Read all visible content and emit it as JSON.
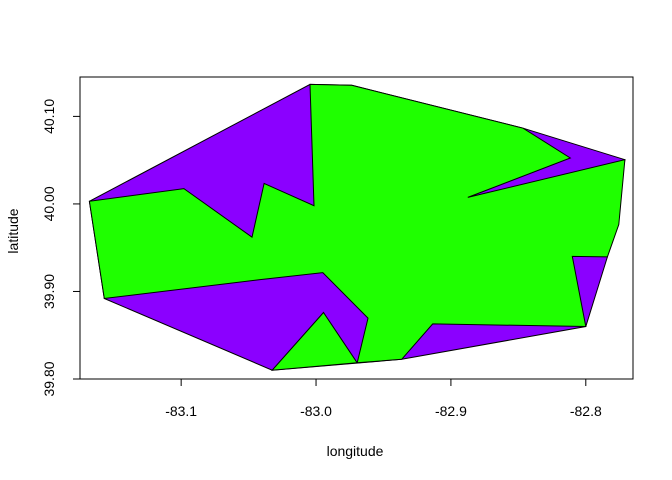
{
  "chart_data": {
    "type": "map",
    "title": "",
    "xlabel": "longitude",
    "ylabel": "latitude",
    "xlim": [
      -83.175,
      -82.765
    ],
    "ylim": [
      39.8,
      40.145
    ],
    "xticks": [
      -83.1,
      -83.0,
      -82.9,
      -82.8
    ],
    "xtick_labels": [
      "-83.1",
      "-83.0",
      "-82.9",
      "-82.8"
    ],
    "yticks": [
      39.8,
      39.9,
      40.0,
      40.1
    ],
    "ytick_labels": [
      "39.80",
      "39.90",
      "40.00",
      "40.10"
    ],
    "grid": false,
    "colors": {
      "outer": "#8B00FF",
      "inner": "#1FFF00",
      "stroke": "#000000"
    },
    "polygons": [
      {
        "fill": "outer",
        "lonlat": [
          [
            -83.0045,
            40.1365
          ],
          [
            -82.9735,
            40.1355
          ],
          [
            -82.8465,
            40.0865
          ],
          [
            -82.771,
            40.0505
          ],
          [
            -82.784,
            39.9395
          ],
          [
            -82.8,
            39.86
          ],
          [
            -82.9365,
            39.8225
          ],
          [
            -83.0325,
            39.81
          ],
          [
            -83.157,
            39.892
          ],
          [
            -83.168,
            40.003
          ]
        ]
      },
      {
        "fill": "inner",
        "lonlat": [
          [
            -83.0045,
            40.1365
          ],
          [
            -82.9735,
            40.1355
          ],
          [
            -82.8465,
            40.0865
          ],
          [
            -82.8115,
            40.0525
          ],
          [
            -82.8875,
            40.0075
          ],
          [
            -82.771,
            40.0505
          ],
          [
            -82.7755,
            39.9765
          ],
          [
            -82.784,
            39.9395
          ],
          [
            -82.81,
            39.94
          ],
          [
            -82.8,
            39.86
          ],
          [
            -82.9135,
            39.863
          ],
          [
            -82.9365,
            39.8225
          ],
          [
            -82.9695,
            39.8185
          ],
          [
            -82.9945,
            39.876
          ],
          [
            -83.0325,
            39.81
          ],
          [
            -82.9695,
            39.8185
          ],
          [
            -82.9615,
            39.8695
          ],
          [
            -82.995,
            39.9215
          ],
          [
            -83.0415,
            39.9135
          ],
          [
            -83.157,
            39.892
          ],
          [
            -83.168,
            40.003
          ],
          [
            -83.098,
            40.0175
          ],
          [
            -83.0475,
            39.962
          ],
          [
            -83.0385,
            40.0235
          ],
          [
            -83.0015,
            39.998
          ]
        ]
      }
    ]
  }
}
